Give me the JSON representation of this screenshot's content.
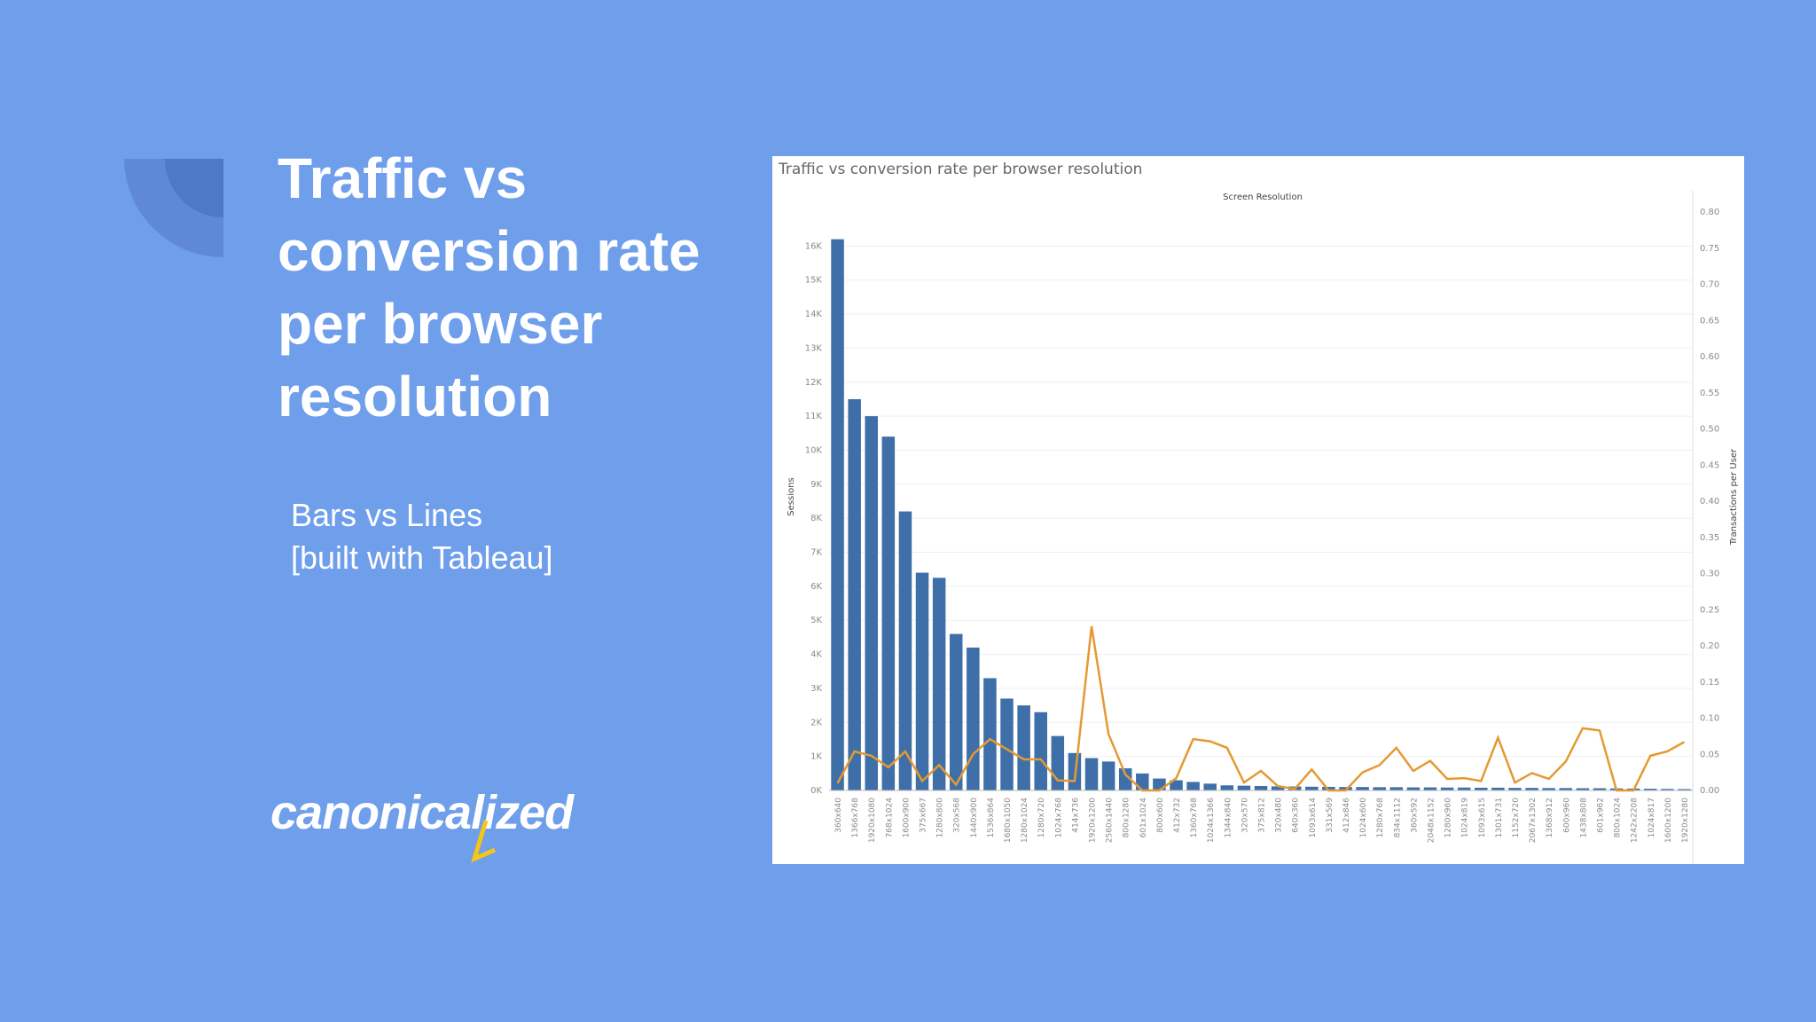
{
  "slide": {
    "title": "Traffic vs conversion rate per browser resolution",
    "subtitle": "Bars vs Lines",
    "note": "[built with Tableau]",
    "logo": "canonicalized"
  },
  "chart_data": {
    "type": "bar_line",
    "title": "Traffic vs conversion rate per browser resolution",
    "x_label": "Screen Resolution",
    "categories": [
      "360x640",
      "1366x768",
      "1920x1080",
      "768x1024",
      "1600x900",
      "375x667",
      "1280x800",
      "320x568",
      "1440x900",
      "1536x864",
      "1680x1050",
      "1280x1024",
      "1280x720",
      "1024x768",
      "414x736",
      "1920x1200",
      "2560x1440",
      "800x1280",
      "601x1024",
      "800x600",
      "412x732",
      "1360x768",
      "1024x1366",
      "1344x840",
      "320x570",
      "375x812",
      "320x480",
      "640x360",
      "1093x614",
      "331x569",
      "412x846",
      "1024x600",
      "1280x768",
      "834x1112",
      "360x592",
      "2048x1152",
      "1280x960",
      "1024x819",
      "1093x615",
      "1301x731",
      "1152x720",
      "2067x1302",
      "1368x912",
      "600x960",
      "1438x808",
      "601x962",
      "800x1024",
      "1242x2208",
      "1024x817",
      "1600x1200",
      "1920x1280"
    ],
    "series": [
      {
        "name": "Sessions",
        "type": "bar",
        "color": "#3f6fa8",
        "values": [
          16200,
          11500,
          11000,
          10400,
          8200,
          6400,
          6250,
          4600,
          4200,
          3300,
          2700,
          2500,
          2300,
          1600,
          1100,
          950,
          850,
          650,
          500,
          350,
          300,
          250,
          200,
          150,
          140,
          130,
          120,
          115,
          110,
          105,
          100,
          100,
          95,
          95,
          90,
          90,
          85,
          85,
          80,
          80,
          75,
          75,
          70,
          70,
          65,
          65,
          60,
          55,
          50,
          45,
          40
        ]
      },
      {
        "name": "Transactions per User",
        "type": "line",
        "axis": "y2",
        "color": "#e49a32",
        "values": [
          0.01,
          0.054,
          0.048,
          0.032,
          0.054,
          0.013,
          0.035,
          0.008,
          0.05,
          0.071,
          0.057,
          0.043,
          0.043,
          0.014,
          0.013,
          0.227,
          0.078,
          0.022,
          0,
          0,
          0.017,
          0.071,
          0.068,
          0.059,
          0.011,
          0.027,
          0.006,
          0.002,
          0.029,
          0,
          0,
          0.025,
          0.035,
          0.059,
          0.027,
          0.041,
          0.016,
          0.017,
          0.013,
          0.073,
          0.011,
          0.024,
          0.016,
          0.04,
          0.086,
          0.083,
          0,
          0,
          0.048,
          0.054,
          0.067
        ]
      }
    ],
    "ylim": [
      0,
      17000
    ],
    "yticks": [
      {
        "value": 0,
        "label": "0K"
      },
      {
        "value": 1000,
        "label": "1K"
      },
      {
        "value": 2000,
        "label": "2K"
      },
      {
        "value": 3000,
        "label": "3K"
      },
      {
        "value": 4000,
        "label": "4K"
      },
      {
        "value": 5000,
        "label": "5K"
      },
      {
        "value": 6000,
        "label": "6K"
      },
      {
        "value": 7000,
        "label": "7K"
      },
      {
        "value": 8000,
        "label": "8K"
      },
      {
        "value": 9000,
        "label": "9K"
      },
      {
        "value": 10000,
        "label": "10K"
      },
      {
        "value": 11000,
        "label": "11K"
      },
      {
        "value": 12000,
        "label": "12K"
      },
      {
        "value": 13000,
        "label": "13K"
      },
      {
        "value": 14000,
        "label": "14K"
      },
      {
        "value": 15000,
        "label": "15K"
      },
      {
        "value": 16000,
        "label": "16K"
      }
    ],
    "y2lim": [
      0,
      0.8
    ],
    "y2ticks": [
      {
        "value": 0,
        "label": "0.00"
      },
      0.05,
      {
        "value": 0.1,
        "label": "0.10"
      },
      0.15,
      {
        "value": 0.2,
        "label": "0.20"
      },
      0.25,
      {
        "value": 0.3,
        "label": "0.30"
      },
      0.35,
      {
        "value": 0.4,
        "label": "0.40"
      },
      0.45,
      {
        "value": 0.5,
        "label": "0.50"
      },
      0.55,
      {
        "value": 0.6,
        "label": "0.60"
      },
      0.65,
      {
        "value": 0.7,
        "label": "0.70"
      },
      0.75,
      {
        "value": 0.8,
        "label": "0.80"
      }
    ],
    "grid": true
  }
}
